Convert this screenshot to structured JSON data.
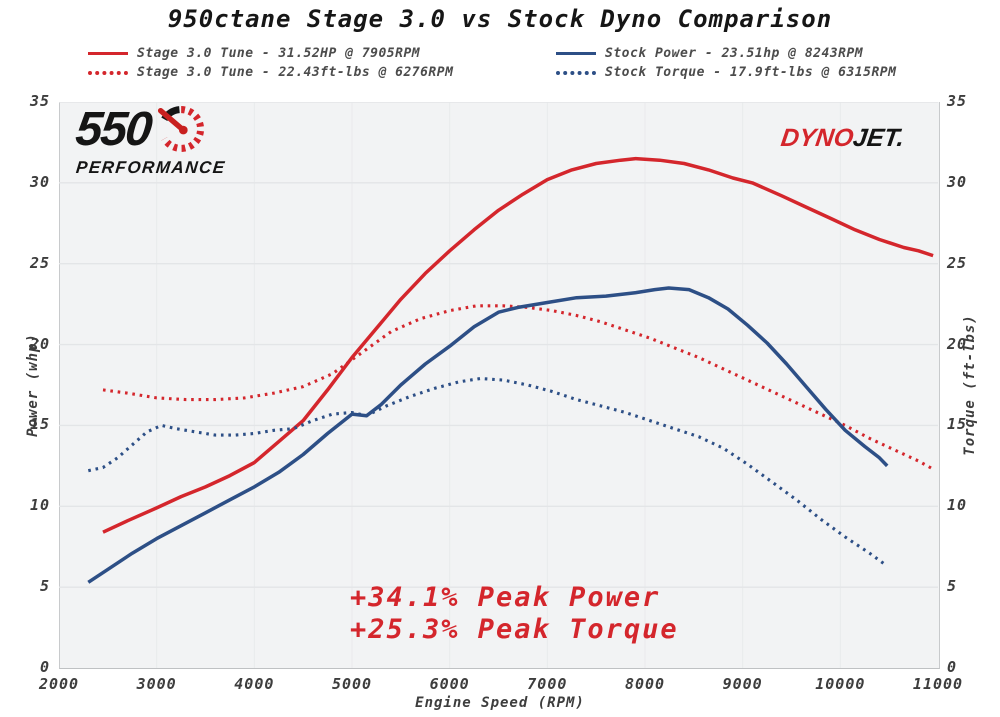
{
  "title": "950ctane Stage 3.0 vs Stock Dyno Comparison",
  "colors": {
    "stage_red": "#d4262c",
    "stock_blue": "#2d4f86",
    "annotation_red": "#d4262c",
    "grid": "#e3e5e7",
    "plot_bg": "#f2f3f4"
  },
  "legend": [
    {
      "label": "Stage 3.0 Tune - 31.52HP @ 7905RPM",
      "color": "#d4262c",
      "style": "solid"
    },
    {
      "label": "Stage 3.0 Tune - 22.43ft-lbs @ 6276RPM",
      "color": "#d4262c",
      "style": "dotted"
    },
    {
      "label": "Stock Power - 23.51hp @ 8243RPM",
      "color": "#2d4f86",
      "style": "solid"
    },
    {
      "label": "Stock Torque - 17.9ft-lbs @ 6315RPM",
      "color": "#2d4f86",
      "style": "dotted"
    }
  ],
  "watermarks": {
    "performance_550": {
      "number": "550",
      "word": "PERFORMANCE"
    },
    "dynojet": {
      "part1": "DYNO",
      "part2": "JET."
    }
  },
  "annotation": {
    "line1": "+34.1% Peak Power",
    "line2": "+25.3% Peak Torque"
  },
  "chart_data": {
    "type": "line",
    "title": "950ctane Stage 3.0 vs Stock Dyno Comparison",
    "xlabel": "Engine Speed (RPM)",
    "ylabel_left": "Power (whp)",
    "ylabel_right": "Torque (ft-lbs)",
    "xlim": [
      2000,
      11000
    ],
    "ylim": [
      0,
      35
    ],
    "x_ticks": [
      2000,
      3000,
      4000,
      5000,
      6000,
      7000,
      8000,
      9000,
      10000,
      11000
    ],
    "y_ticks": [
      0,
      5,
      10,
      15,
      20,
      25,
      30,
      35
    ],
    "grid": true,
    "legend_position": "top",
    "series": [
      {
        "name": "Stage 3.0 Tune Power",
        "unit": "whp",
        "peak": "31.52HP @ 7905RPM",
        "color": "#d4262c",
        "style": "solid",
        "points": [
          [
            2450,
            8.4
          ],
          [
            2700,
            9.1
          ],
          [
            3000,
            9.9
          ],
          [
            3250,
            10.6
          ],
          [
            3500,
            11.2
          ],
          [
            3750,
            11.9
          ],
          [
            4000,
            12.7
          ],
          [
            4250,
            14.0
          ],
          [
            4500,
            15.3
          ],
          [
            4750,
            17.2
          ],
          [
            5000,
            19.2
          ],
          [
            5250,
            21.0
          ],
          [
            5500,
            22.8
          ],
          [
            5750,
            24.4
          ],
          [
            6000,
            25.8
          ],
          [
            6250,
            27.1
          ],
          [
            6500,
            28.3
          ],
          [
            6750,
            29.3
          ],
          [
            7000,
            30.2
          ],
          [
            7250,
            30.8
          ],
          [
            7500,
            31.2
          ],
          [
            7750,
            31.4
          ],
          [
            7905,
            31.5
          ],
          [
            8150,
            31.4
          ],
          [
            8400,
            31.2
          ],
          [
            8650,
            30.8
          ],
          [
            8900,
            30.3
          ],
          [
            9100,
            30.0
          ],
          [
            9400,
            29.2
          ],
          [
            9650,
            28.5
          ],
          [
            9900,
            27.8
          ],
          [
            10150,
            27.1
          ],
          [
            10400,
            26.5
          ],
          [
            10650,
            26.0
          ],
          [
            10800,
            25.8
          ],
          [
            10950,
            25.5
          ]
        ]
      },
      {
        "name": "Stage 3.0 Tune Torque",
        "unit": "ft-lbs",
        "peak": "22.43ft-lbs @ 6276RPM",
        "color": "#d4262c",
        "style": "dotted",
        "points": [
          [
            2450,
            17.2
          ],
          [
            2700,
            17.0
          ],
          [
            3000,
            16.7
          ],
          [
            3300,
            16.6
          ],
          [
            3600,
            16.6
          ],
          [
            3900,
            16.7
          ],
          [
            4200,
            17.0
          ],
          [
            4500,
            17.4
          ],
          [
            4800,
            18.2
          ],
          [
            5100,
            19.5
          ],
          [
            5400,
            20.8
          ],
          [
            5700,
            21.6
          ],
          [
            6000,
            22.1
          ],
          [
            6276,
            22.4
          ],
          [
            6550,
            22.4
          ],
          [
            6800,
            22.3
          ],
          [
            7050,
            22.1
          ],
          [
            7300,
            21.8
          ],
          [
            7550,
            21.4
          ],
          [
            7800,
            20.9
          ],
          [
            8050,
            20.4
          ],
          [
            8300,
            19.8
          ],
          [
            8550,
            19.2
          ],
          [
            8800,
            18.5
          ],
          [
            9050,
            17.8
          ],
          [
            9300,
            17.1
          ],
          [
            9550,
            16.4
          ],
          [
            9800,
            15.7
          ],
          [
            10050,
            15.0
          ],
          [
            10300,
            14.2
          ],
          [
            10550,
            13.5
          ],
          [
            10800,
            12.8
          ],
          [
            10950,
            12.3
          ]
        ]
      },
      {
        "name": "Stock Power",
        "unit": "whp",
        "peak": "23.51hp @ 8243RPM",
        "color": "#2d4f86",
        "style": "solid",
        "points": [
          [
            2300,
            5.3
          ],
          [
            2500,
            6.1
          ],
          [
            2750,
            7.1
          ],
          [
            3000,
            8.0
          ],
          [
            3250,
            8.8
          ],
          [
            3500,
            9.6
          ],
          [
            3750,
            10.4
          ],
          [
            4000,
            11.2
          ],
          [
            4250,
            12.1
          ],
          [
            4500,
            13.2
          ],
          [
            4750,
            14.5
          ],
          [
            5000,
            15.7
          ],
          [
            5150,
            15.6
          ],
          [
            5300,
            16.3
          ],
          [
            5500,
            17.5
          ],
          [
            5750,
            18.8
          ],
          [
            6000,
            19.9
          ],
          [
            6250,
            21.1
          ],
          [
            6500,
            22.0
          ],
          [
            6700,
            22.3
          ],
          [
            7000,
            22.6
          ],
          [
            7300,
            22.9
          ],
          [
            7600,
            23.0
          ],
          [
            7900,
            23.2
          ],
          [
            8100,
            23.4
          ],
          [
            8243,
            23.5
          ],
          [
            8450,
            23.4
          ],
          [
            8650,
            22.9
          ],
          [
            8850,
            22.2
          ],
          [
            9050,
            21.2
          ],
          [
            9250,
            20.1
          ],
          [
            9450,
            18.8
          ],
          [
            9650,
            17.4
          ],
          [
            9850,
            16.0
          ],
          [
            10050,
            14.7
          ],
          [
            10250,
            13.7
          ],
          [
            10400,
            13.0
          ],
          [
            10480,
            12.5
          ]
        ]
      },
      {
        "name": "Stock Torque",
        "unit": "ft-lbs",
        "peak": "17.9ft-lbs @ 6315RPM",
        "color": "#2d4f86",
        "style": "dotted",
        "points": [
          [
            2300,
            12.2
          ],
          [
            2450,
            12.4
          ],
          [
            2600,
            13.0
          ],
          [
            2750,
            13.8
          ],
          [
            2900,
            14.6
          ],
          [
            3050,
            15.0
          ],
          [
            3200,
            14.8
          ],
          [
            3400,
            14.6
          ],
          [
            3600,
            14.4
          ],
          [
            3800,
            14.4
          ],
          [
            4000,
            14.5
          ],
          [
            4200,
            14.7
          ],
          [
            4400,
            14.8
          ],
          [
            4600,
            15.3
          ],
          [
            4800,
            15.7
          ],
          [
            5000,
            15.8
          ],
          [
            5150,
            15.6
          ],
          [
            5350,
            16.2
          ],
          [
            5600,
            16.8
          ],
          [
            5850,
            17.3
          ],
          [
            6100,
            17.7
          ],
          [
            6315,
            17.9
          ],
          [
            6550,
            17.8
          ],
          [
            6800,
            17.5
          ],
          [
            7050,
            17.1
          ],
          [
            7300,
            16.6
          ],
          [
            7550,
            16.2
          ],
          [
            7800,
            15.8
          ],
          [
            8050,
            15.3
          ],
          [
            8300,
            14.8
          ],
          [
            8550,
            14.3
          ],
          [
            8800,
            13.6
          ],
          [
            9050,
            12.6
          ],
          [
            9300,
            11.5
          ],
          [
            9550,
            10.4
          ],
          [
            9800,
            9.2
          ],
          [
            10050,
            8.1
          ],
          [
            10300,
            7.1
          ],
          [
            10480,
            6.3
          ]
        ]
      }
    ]
  }
}
